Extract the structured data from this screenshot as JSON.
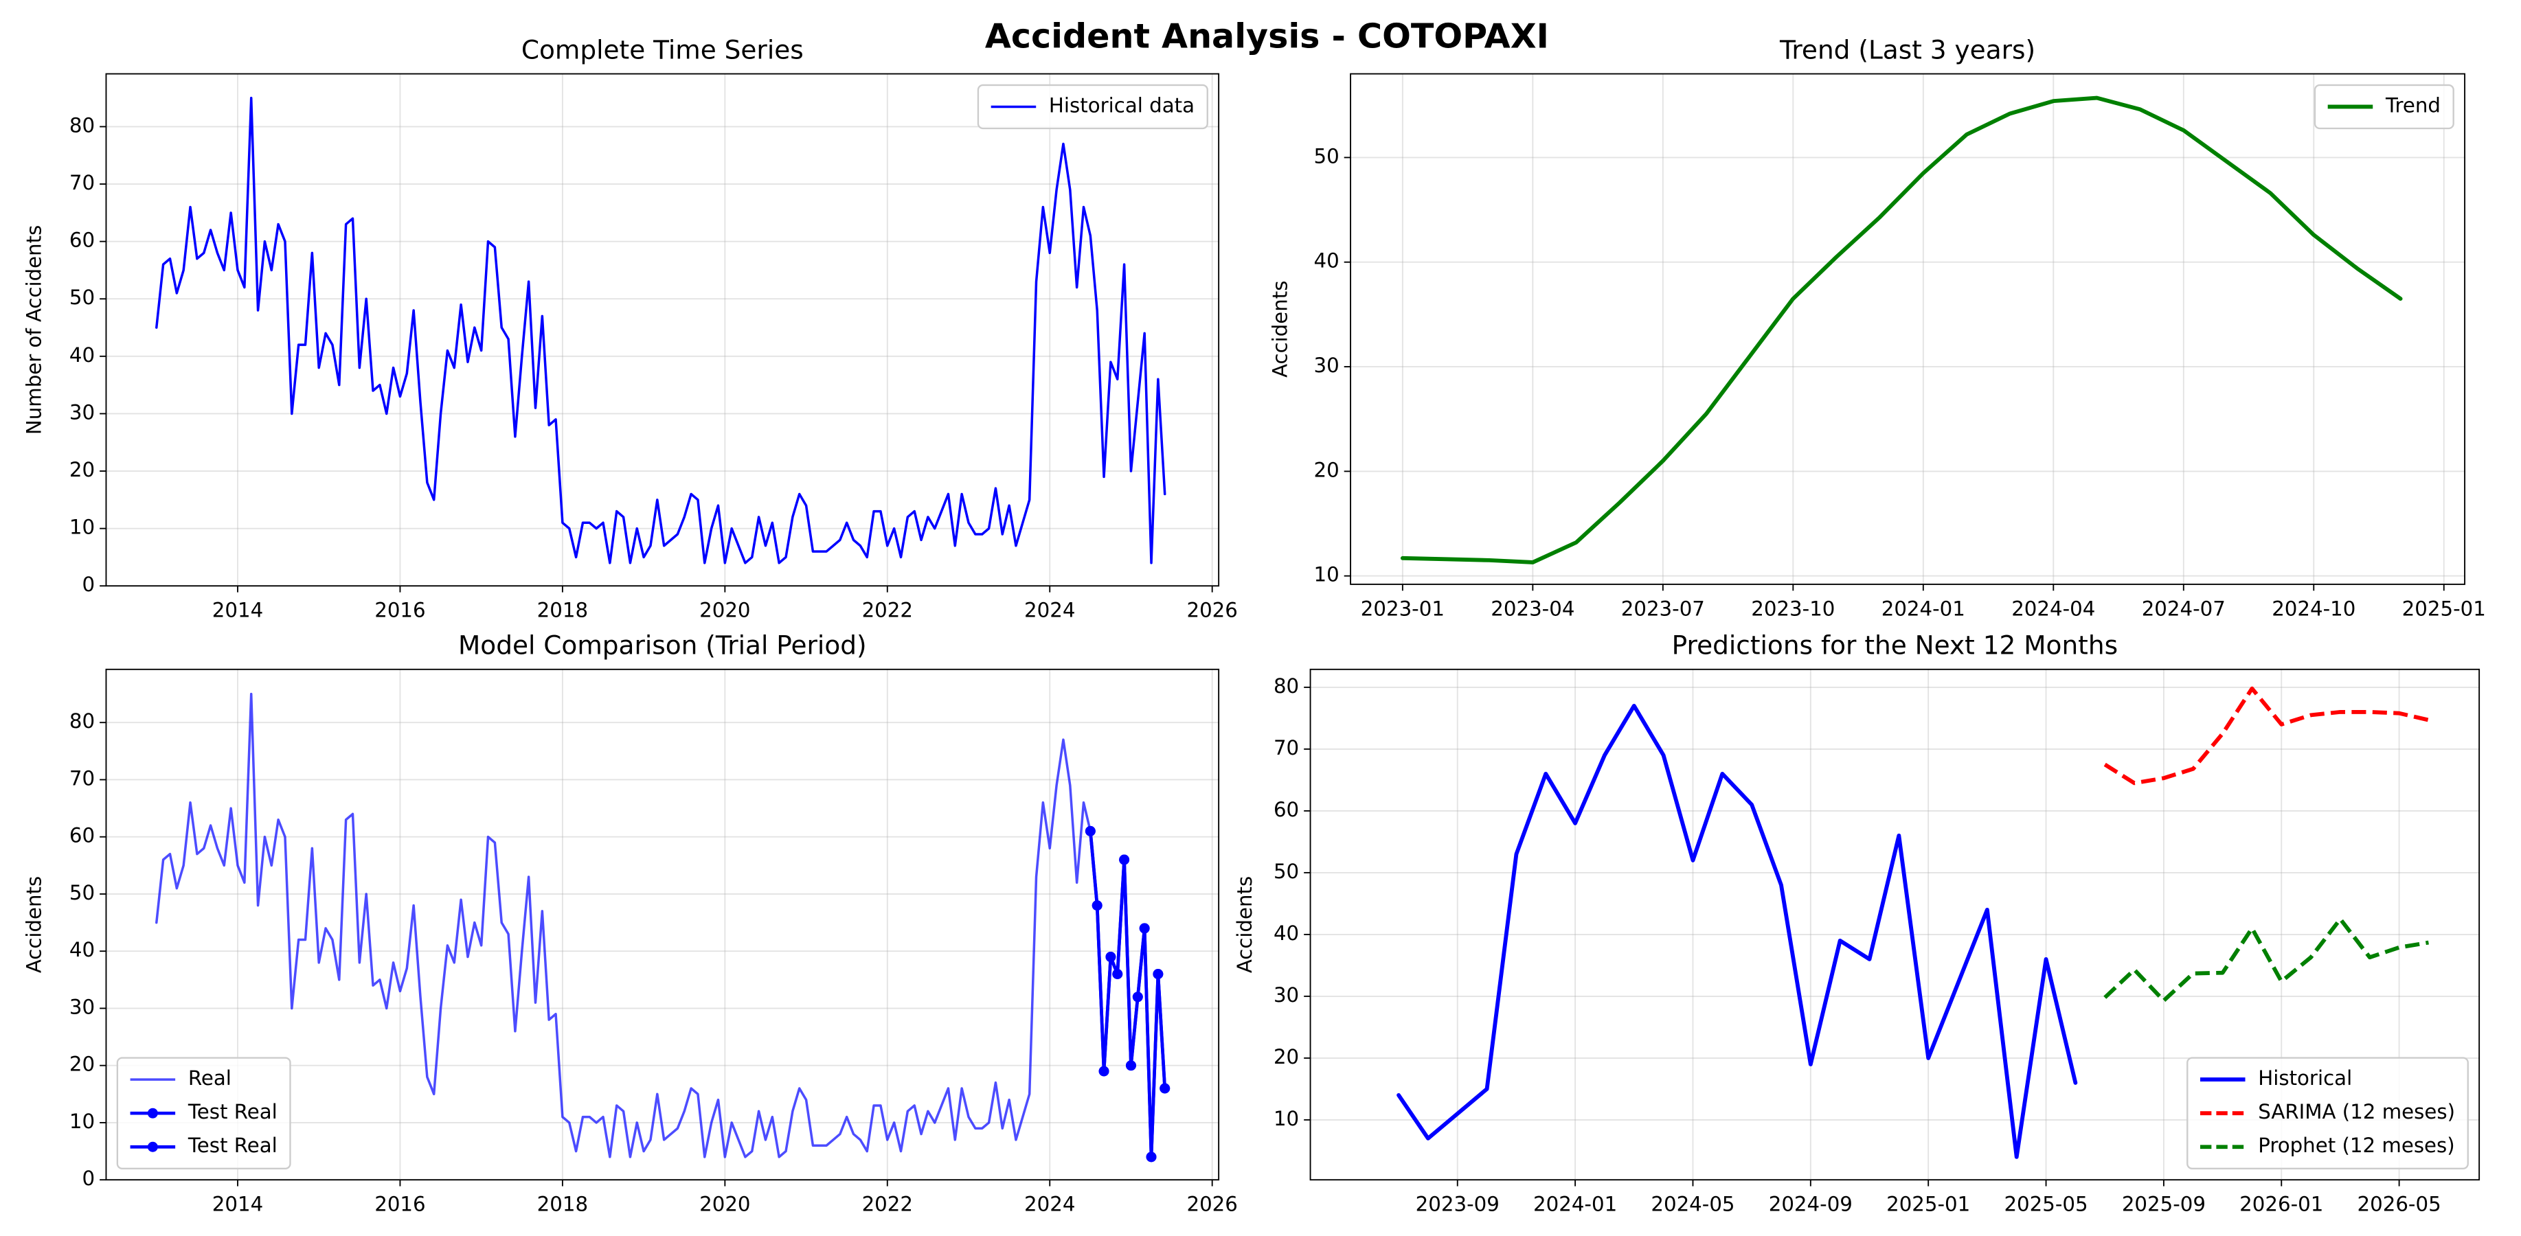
{
  "title": "Accident Analysis - COTOPAXI",
  "chart_data": [
    {
      "type": "line",
      "title": "Complete Time Series",
      "ylabel": "Number of Accidents",
      "grid": true,
      "legend": "upper right",
      "xlim": [
        2012.38,
        2026.08
      ],
      "ylim": [
        0,
        89.2
      ],
      "xticks": [
        2014,
        2016,
        2018,
        2020,
        2022,
        2024,
        2026
      ],
      "yticks": [
        0,
        10,
        20,
        30,
        40,
        50,
        60,
        70,
        80
      ],
      "series": [
        {
          "name": "Historical data",
          "color": "#0000ff",
          "width": 1.5,
          "x": [
            "2013-01",
            "2013-02",
            "2013-03",
            "2013-04",
            "2013-05",
            "2013-06",
            "2013-07",
            "2013-08",
            "2013-09",
            "2013-10",
            "2013-11",
            "2013-12",
            "2014-01",
            "2014-02",
            "2014-03",
            "2014-04",
            "2014-05",
            "2014-06",
            "2014-07",
            "2014-08",
            "2014-09",
            "2014-10",
            "2014-11",
            "2014-12",
            "2015-01",
            "2015-02",
            "2015-03",
            "2015-04",
            "2015-05",
            "2015-06",
            "2015-07",
            "2015-08",
            "2015-09",
            "2015-10",
            "2015-11",
            "2015-12",
            "2016-01",
            "2016-02",
            "2016-03",
            "2016-04",
            "2016-05",
            "2016-06",
            "2016-07",
            "2016-08",
            "2016-09",
            "2016-10",
            "2016-11",
            "2016-12",
            "2017-01",
            "2017-02",
            "2017-03",
            "2017-04",
            "2017-05",
            "2017-06",
            "2017-07",
            "2017-08",
            "2017-09",
            "2017-10",
            "2017-11",
            "2017-12",
            "2018-01",
            "2018-02",
            "2018-03",
            "2018-04",
            "2018-05",
            "2018-06",
            "2018-07",
            "2018-08",
            "2018-09",
            "2018-10",
            "2018-11",
            "2018-12",
            "2019-01",
            "2019-02",
            "2019-03",
            "2019-04",
            "2019-05",
            "2019-06",
            "2019-07",
            "2019-08",
            "2019-09",
            "2019-10",
            "2019-11",
            "2019-12",
            "2020-01",
            "2020-02",
            "2020-03",
            "2020-04",
            "2020-05",
            "2020-06",
            "2020-07",
            "2020-08",
            "2020-09",
            "2020-10",
            "2020-11",
            "2020-12",
            "2021-01",
            "2021-02",
            "2021-03",
            "2021-04",
            "2021-05",
            "2021-06",
            "2021-07",
            "2021-08",
            "2021-09",
            "2021-10",
            "2021-11",
            "2021-12",
            "2022-01",
            "2022-02",
            "2022-03",
            "2022-04",
            "2022-05",
            "2022-06",
            "2022-07",
            "2022-08",
            "2022-09",
            "2022-10",
            "2022-11",
            "2022-12",
            "2023-01",
            "2023-02",
            "2023-03",
            "2023-04",
            "2023-05",
            "2023-06",
            "2023-07",
            "2023-08",
            "2023-09",
            "2023-10",
            "2023-11",
            "2023-12",
            "2024-01",
            "2024-02",
            "2024-03",
            "2024-04",
            "2024-05",
            "2024-06",
            "2024-07",
            "2024-08",
            "2024-09",
            "2024-10",
            "2024-11",
            "2024-12",
            "2025-01",
            "2025-02",
            "2025-03",
            "2025-04",
            "2025-05",
            "2025-06"
          ],
          "values": [
            45,
            56,
            57,
            51,
            55,
            66,
            57,
            58,
            62,
            58,
            55,
            65,
            55,
            52,
            85,
            48,
            60,
            55,
            63,
            60,
            30,
            42,
            42,
            58,
            38,
            44,
            42,
            35,
            63,
            64,
            38,
            50,
            34,
            35,
            30,
            38,
            33,
            37,
            48,
            32,
            18,
            15,
            30,
            41,
            38,
            49,
            39,
            45,
            41,
            60,
            59,
            45,
            43,
            26,
            40,
            53,
            31,
            47,
            28,
            29,
            11,
            10,
            5,
            11,
            11,
            10,
            11,
            4,
            13,
            12,
            4,
            10,
            5,
            7,
            15,
            7,
            8,
            9,
            12,
            16,
            15,
            4,
            10,
            14,
            4,
            10,
            7,
            4,
            5,
            12,
            7,
            11,
            4,
            5,
            12,
            16,
            14,
            6,
            6,
            6,
            7,
            8,
            11,
            8,
            7,
            5,
            13,
            13,
            7,
            10,
            5,
            12,
            13,
            8,
            12,
            10,
            13,
            16,
            7,
            16,
            11,
            9,
            9,
            10,
            17,
            9,
            14,
            7,
            11,
            15,
            53,
            66,
            58,
            69,
            77,
            69,
            52,
            66,
            61,
            48,
            19,
            39,
            36,
            56,
            20,
            32,
            44,
            4,
            36,
            16
          ]
        }
      ]
    },
    {
      "type": "line",
      "title": "Trend (Last 3 years)",
      "ylabel": "Accidents",
      "grid": true,
      "legend": "upper right",
      "xlim": [
        2022.9,
        2025.04
      ],
      "ylim": [
        9.2,
        58
      ],
      "xticks": [
        "2023-01",
        "2023-04",
        "2023-07",
        "2023-10",
        "2024-01",
        "2024-04",
        "2024-07",
        "2024-10",
        "2025-01"
      ],
      "yticks": [
        10,
        20,
        30,
        40,
        50
      ],
      "series": [
        {
          "name": "Trend",
          "color": "#008000",
          "width": 2.5,
          "x": [
            "2023-01",
            "2023-02",
            "2023-03",
            "2023-04",
            "2023-05",
            "2023-06",
            "2023-07",
            "2023-08",
            "2023-09",
            "2023-10",
            "2023-11",
            "2023-12",
            "2024-01",
            "2024-02",
            "2024-03",
            "2024-04",
            "2024-05",
            "2024-06",
            "2024-07",
            "2024-08",
            "2024-09",
            "2024-10",
            "2024-11",
            "2024-12"
          ],
          "values": [
            11.7,
            11.6,
            11.5,
            11.3,
            13.2,
            17,
            21,
            25.5,
            31,
            36.5,
            40.5,
            44.3,
            48.5,
            52.2,
            54.2,
            55.4,
            55.7,
            54.6,
            52.6,
            49.6,
            46.6,
            42.6,
            39.4,
            36.5
          ]
        }
      ]
    },
    {
      "type": "line",
      "title": "Model Comparison (Trial Period)",
      "ylabel": "Accidents",
      "grid": true,
      "legend": "lower left",
      "xlim": [
        2012.38,
        2026.08
      ],
      "ylim": [
        0,
        89.3
      ],
      "xticks": [
        2014,
        2016,
        2018,
        2020,
        2022,
        2024,
        2026
      ],
      "yticks": [
        0,
        10,
        20,
        30,
        40,
        50,
        60,
        70,
        80
      ],
      "series": [
        {
          "name": "Real",
          "color": "#0000ff",
          "alpha": 0.7,
          "width": 1.5,
          "x": [
            "2013-01",
            "2013-02",
            "2013-03",
            "2013-04",
            "2013-05",
            "2013-06",
            "2013-07",
            "2013-08",
            "2013-09",
            "2013-10",
            "2013-11",
            "2013-12",
            "2014-01",
            "2014-02",
            "2014-03",
            "2014-04",
            "2014-05",
            "2014-06",
            "2014-07",
            "2014-08",
            "2014-09",
            "2014-10",
            "2014-11",
            "2014-12",
            "2015-01",
            "2015-02",
            "2015-03",
            "2015-04",
            "2015-05",
            "2015-06",
            "2015-07",
            "2015-08",
            "2015-09",
            "2015-10",
            "2015-11",
            "2015-12",
            "2016-01",
            "2016-02",
            "2016-03",
            "2016-04",
            "2016-05",
            "2016-06",
            "2016-07",
            "2016-08",
            "2016-09",
            "2016-10",
            "2016-11",
            "2016-12",
            "2017-01",
            "2017-02",
            "2017-03",
            "2017-04",
            "2017-05",
            "2017-06",
            "2017-07",
            "2017-08",
            "2017-09",
            "2017-10",
            "2017-11",
            "2017-12",
            "2018-01",
            "2018-02",
            "2018-03",
            "2018-04",
            "2018-05",
            "2018-06",
            "2018-07",
            "2018-08",
            "2018-09",
            "2018-10",
            "2018-11",
            "2018-12",
            "2019-01",
            "2019-02",
            "2019-03",
            "2019-04",
            "2019-05",
            "2019-06",
            "2019-07",
            "2019-08",
            "2019-09",
            "2019-10",
            "2019-11",
            "2019-12",
            "2020-01",
            "2020-02",
            "2020-03",
            "2020-04",
            "2020-05",
            "2020-06",
            "2020-07",
            "2020-08",
            "2020-09",
            "2020-10",
            "2020-11",
            "2020-12",
            "2021-01",
            "2021-02",
            "2021-03",
            "2021-04",
            "2021-05",
            "2021-06",
            "2021-07",
            "2021-08",
            "2021-09",
            "2021-10",
            "2021-11",
            "2021-12",
            "2022-01",
            "2022-02",
            "2022-03",
            "2022-04",
            "2022-05",
            "2022-06",
            "2022-07",
            "2022-08",
            "2022-09",
            "2022-10",
            "2022-11",
            "2022-12",
            "2023-01",
            "2023-02",
            "2023-03",
            "2023-04",
            "2023-05",
            "2023-06",
            "2023-07",
            "2023-08",
            "2023-09",
            "2023-10",
            "2023-11",
            "2023-12",
            "2024-01",
            "2024-02",
            "2024-03",
            "2024-04",
            "2024-05",
            "2024-06",
            "2024-07",
            "2024-08",
            "2024-09",
            "2024-10",
            "2024-11",
            "2024-12",
            "2025-01",
            "2025-02",
            "2025-03",
            "2025-04",
            "2025-05",
            "2025-06"
          ],
          "values": [
            45,
            56,
            57,
            51,
            55,
            66,
            57,
            58,
            62,
            58,
            55,
            65,
            55,
            52,
            85,
            48,
            60,
            55,
            63,
            60,
            30,
            42,
            42,
            58,
            38,
            44,
            42,
            35,
            63,
            64,
            38,
            50,
            34,
            35,
            30,
            38,
            33,
            37,
            48,
            32,
            18,
            15,
            30,
            41,
            38,
            49,
            39,
            45,
            41,
            60,
            59,
            45,
            43,
            26,
            40,
            53,
            31,
            47,
            28,
            29,
            11,
            10,
            5,
            11,
            11,
            10,
            11,
            4,
            13,
            12,
            4,
            10,
            5,
            7,
            15,
            7,
            8,
            9,
            12,
            16,
            15,
            4,
            10,
            14,
            4,
            10,
            7,
            4,
            5,
            12,
            7,
            11,
            4,
            5,
            12,
            16,
            14,
            6,
            6,
            6,
            7,
            8,
            11,
            8,
            7,
            5,
            13,
            13,
            7,
            10,
            5,
            12,
            13,
            8,
            12,
            10,
            13,
            16,
            7,
            16,
            11,
            9,
            9,
            10,
            17,
            9,
            14,
            7,
            11,
            15,
            53,
            66,
            58,
            69,
            77,
            69,
            52,
            66,
            61,
            48,
            19,
            39,
            36,
            56,
            20,
            32,
            44,
            4,
            36,
            16
          ]
        },
        {
          "name": "Test Real",
          "color": "#0000ff",
          "width": 2,
          "marker": "o",
          "x": [
            "2024-07",
            "2024-08",
            "2024-09",
            "2024-10",
            "2024-11",
            "2024-12",
            "2025-01",
            "2025-02",
            "2025-03",
            "2025-04",
            "2025-05",
            "2025-06"
          ],
          "values": [
            61,
            48,
            19,
            39,
            36,
            56,
            20,
            32,
            44,
            4,
            36,
            16
          ]
        },
        {
          "name": "Test Real",
          "color": "#0000ff",
          "width": 2,
          "marker": "o",
          "x": [
            "2024-07",
            "2024-08",
            "2024-09",
            "2024-10",
            "2024-11",
            "2024-12",
            "2025-01",
            "2025-02",
            "2025-03",
            "2025-04",
            "2025-05",
            "2025-06"
          ],
          "values": [
            61,
            48,
            19,
            39,
            36,
            56,
            20,
            32,
            44,
            4,
            36,
            16
          ]
        }
      ]
    },
    {
      "type": "line",
      "title": "Predictions for the Next 12 Months",
      "ylabel": "Accidents",
      "grid": true,
      "legend": "lower right",
      "xlim": [
        2023.25,
        2026.56
      ],
      "ylim": [
        0.3,
        82.9
      ],
      "xticks": [
        "2023-09",
        "2024-01",
        "2024-05",
        "2024-09",
        "2025-01",
        "2025-05",
        "2025-09",
        "2026-01",
        "2026-05"
      ],
      "yticks": [
        10,
        20,
        30,
        40,
        50,
        60,
        70,
        80
      ],
      "series": [
        {
          "name": "Historical",
          "color": "#0000ff",
          "width": 2.5,
          "x": [
            "2023-07",
            "2023-08",
            "2023-09",
            "2023-10",
            "2023-11",
            "2023-12",
            "2024-01",
            "2024-02",
            "2024-03",
            "2024-04",
            "2024-05",
            "2024-06",
            "2024-07",
            "2024-08",
            "2024-09",
            "2024-10",
            "2024-11",
            "2024-12",
            "2025-01",
            "2025-02",
            "2025-03",
            "2025-04",
            "2025-05",
            "2025-06"
          ],
          "values": [
            14,
            7,
            11,
            15,
            53,
            66,
            58,
            69,
            77,
            69,
            52,
            66,
            61,
            48,
            19,
            39,
            36,
            56,
            20,
            32,
            44,
            4,
            36,
            16
          ]
        },
        {
          "name": "SARIMA (12 meses)",
          "color": "#ff0000",
          "width": 2.5,
          "linestyle": "dashed",
          "x": [
            "2025-07",
            "2025-08",
            "2025-09",
            "2025-10",
            "2025-11",
            "2025-12",
            "2026-01",
            "2026-02",
            "2026-03",
            "2026-04",
            "2026-05",
            "2026-06"
          ],
          "values": [
            67.5,
            64.5,
            65.3,
            66.8,
            72.5,
            79.8,
            74,
            75.5,
            76,
            76,
            75.8,
            74.7
          ]
        },
        {
          "name": "Prophet (12 meses)",
          "color": "#008000",
          "width": 2.5,
          "linestyle": "dashed",
          "x": [
            "2025-07",
            "2025-08",
            "2025-09",
            "2025-10",
            "2025-11",
            "2025-12",
            "2026-01",
            "2026-02",
            "2026-03",
            "2026-04",
            "2026-05",
            "2026-06"
          ],
          "values": [
            29.8,
            34.3,
            29.3,
            33.7,
            33.8,
            41,
            32.4,
            36.3,
            42.5,
            36.3,
            37.9,
            38.7
          ]
        }
      ]
    }
  ]
}
